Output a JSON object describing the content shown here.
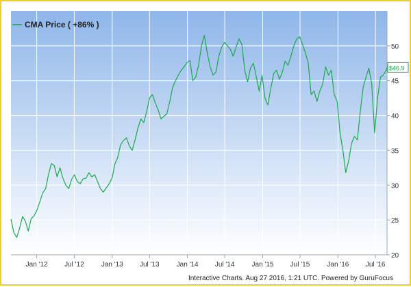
{
  "chart_data": {
    "type": "line",
    "title": "",
    "xlabel": "",
    "ylabel": "",
    "legend": {
      "position": "top-left",
      "label": "CMA Price ( +86% )"
    },
    "series": [
      {
        "name": "CMA Price ( +86% )",
        "color": "#1aa84a",
        "points": [
          [
            "2011-08-29",
            25.1
          ],
          [
            "2011-09-12",
            23.2
          ],
          [
            "2011-09-26",
            22.5
          ],
          [
            "2011-10-10",
            23.8
          ],
          [
            "2011-10-24",
            25.5
          ],
          [
            "2011-11-07",
            24.8
          ],
          [
            "2011-11-21",
            23.4
          ],
          [
            "2011-12-05",
            25.2
          ],
          [
            "2011-12-19",
            25.6
          ],
          [
            "2012-01-02",
            26.4
          ],
          [
            "2012-01-16",
            27.6
          ],
          [
            "2012-01-30",
            28.9
          ],
          [
            "2012-02-13",
            29.5
          ],
          [
            "2012-02-27",
            31.5
          ],
          [
            "2012-03-12",
            33.1
          ],
          [
            "2012-03-26",
            32.8
          ],
          [
            "2012-04-09",
            31.2
          ],
          [
            "2012-04-23",
            32.5
          ],
          [
            "2012-05-07",
            31.0
          ],
          [
            "2012-05-21",
            30.0
          ],
          [
            "2012-06-04",
            29.5
          ],
          [
            "2012-06-18",
            30.8
          ],
          [
            "2012-07-02",
            31.5
          ],
          [
            "2012-07-16",
            30.5
          ],
          [
            "2012-07-30",
            30.2
          ],
          [
            "2012-08-13",
            30.9
          ],
          [
            "2012-08-27",
            31.0
          ],
          [
            "2012-09-10",
            31.8
          ],
          [
            "2012-09-24",
            31.2
          ],
          [
            "2012-10-08",
            31.5
          ],
          [
            "2012-10-22",
            30.5
          ],
          [
            "2012-11-05",
            29.5
          ],
          [
            "2012-11-19",
            29.0
          ],
          [
            "2012-12-03",
            29.6
          ],
          [
            "2012-12-17",
            30.2
          ],
          [
            "2012-12-31",
            31.0
          ],
          [
            "2013-01-14",
            33.0
          ],
          [
            "2013-01-28",
            34.0
          ],
          [
            "2013-02-11",
            35.8
          ],
          [
            "2013-02-25",
            36.4
          ],
          [
            "2013-03-11",
            36.8
          ],
          [
            "2013-03-25",
            35.6
          ],
          [
            "2013-04-08",
            35.0
          ],
          [
            "2013-04-22",
            36.5
          ],
          [
            "2013-05-06",
            38.2
          ],
          [
            "2013-05-20",
            39.5
          ],
          [
            "2013-06-03",
            39.0
          ],
          [
            "2013-06-17",
            40.5
          ],
          [
            "2013-07-01",
            42.5
          ],
          [
            "2013-07-15",
            43.0
          ],
          [
            "2013-07-29",
            41.8
          ],
          [
            "2013-08-12",
            40.8
          ],
          [
            "2013-08-26",
            39.5
          ],
          [
            "2013-09-09",
            39.9
          ],
          [
            "2013-09-23",
            40.2
          ],
          [
            "2013-10-07",
            42.0
          ],
          [
            "2013-10-21",
            44.0
          ],
          [
            "2013-11-04",
            45.0
          ],
          [
            "2013-11-18",
            45.8
          ],
          [
            "2013-12-02",
            46.5
          ],
          [
            "2013-12-16",
            47.0
          ],
          [
            "2013-12-30",
            47.6
          ],
          [
            "2014-01-13",
            47.9
          ],
          [
            "2014-01-27",
            45.0
          ],
          [
            "2014-02-10",
            45.5
          ],
          [
            "2014-02-24",
            47.2
          ],
          [
            "2014-03-10",
            50.0
          ],
          [
            "2014-03-24",
            51.5
          ],
          [
            "2014-04-07",
            49.0
          ],
          [
            "2014-04-21",
            47.0
          ],
          [
            "2014-05-05",
            45.8
          ],
          [
            "2014-05-19",
            46.2
          ],
          [
            "2014-06-02",
            48.5
          ],
          [
            "2014-06-16",
            49.8
          ],
          [
            "2014-06-30",
            50.5
          ],
          [
            "2014-07-14",
            50.0
          ],
          [
            "2014-07-28",
            49.5
          ],
          [
            "2014-08-11",
            48.5
          ],
          [
            "2014-08-25",
            49.8
          ],
          [
            "2014-09-08",
            51.0
          ],
          [
            "2014-09-22",
            50.2
          ],
          [
            "2014-10-06",
            46.5
          ],
          [
            "2014-10-20",
            44.8
          ],
          [
            "2014-11-03",
            46.8
          ],
          [
            "2014-11-17",
            47.5
          ],
          [
            "2014-12-01",
            45.5
          ],
          [
            "2014-12-15",
            43.5
          ],
          [
            "2014-12-29",
            45.8
          ],
          [
            "2015-01-12",
            42.5
          ],
          [
            "2015-01-26",
            41.5
          ],
          [
            "2015-02-09",
            43.8
          ],
          [
            "2015-02-23",
            46.0
          ],
          [
            "2015-03-09",
            46.5
          ],
          [
            "2015-03-23",
            45.2
          ],
          [
            "2015-04-06",
            46.2
          ],
          [
            "2015-04-20",
            47.8
          ],
          [
            "2015-05-04",
            47.2
          ],
          [
            "2015-05-18",
            48.5
          ],
          [
            "2015-06-01",
            50.0
          ],
          [
            "2015-06-15",
            51.0
          ],
          [
            "2015-06-29",
            51.3
          ],
          [
            "2015-07-13",
            50.2
          ],
          [
            "2015-07-27",
            49.0
          ],
          [
            "2015-08-10",
            47.5
          ],
          [
            "2015-08-24",
            43.0
          ],
          [
            "2015-09-07",
            43.5
          ],
          [
            "2015-09-21",
            42.0
          ],
          [
            "2015-10-05",
            43.5
          ],
          [
            "2015-10-19",
            44.5
          ],
          [
            "2015-11-02",
            47.0
          ],
          [
            "2015-11-16",
            45.8
          ],
          [
            "2015-11-30",
            46.5
          ],
          [
            "2015-12-14",
            43.0
          ],
          [
            "2015-12-28",
            42.0
          ],
          [
            "2016-01-11",
            37.5
          ],
          [
            "2016-01-25",
            35.0
          ],
          [
            "2016-02-08",
            31.8
          ],
          [
            "2016-02-22",
            33.5
          ],
          [
            "2016-03-07",
            36.0
          ],
          [
            "2016-03-21",
            37.0
          ],
          [
            "2016-04-04",
            36.5
          ],
          [
            "2016-04-18",
            40.5
          ],
          [
            "2016-05-02",
            44.0
          ],
          [
            "2016-05-16",
            45.5
          ],
          [
            "2016-05-30",
            46.8
          ],
          [
            "2016-06-13",
            44.5
          ],
          [
            "2016-06-27",
            37.5
          ],
          [
            "2016-07-11",
            42.5
          ],
          [
            "2016-07-25",
            45.5
          ],
          [
            "2016-08-08",
            45.8
          ],
          [
            "2016-08-22",
            46.5
          ],
          [
            "2016-08-26",
            46.9
          ]
        ]
      }
    ],
    "x_axis": {
      "ticks": [
        {
          "date": "2012-01-01",
          "label": "Jan '12"
        },
        {
          "date": "2012-07-01",
          "label": "Jul '12"
        },
        {
          "date": "2013-01-01",
          "label": "Jan '13"
        },
        {
          "date": "2013-07-01",
          "label": "Jul '13"
        },
        {
          "date": "2014-01-01",
          "label": "Jan '14"
        },
        {
          "date": "2014-07-01",
          "label": "Jul '14"
        },
        {
          "date": "2015-01-01",
          "label": "Jan '15"
        },
        {
          "date": "2015-07-01",
          "label": "Jul '15"
        },
        {
          "date": "2016-01-01",
          "label": "Jan '16"
        },
        {
          "date": "2016-07-01",
          "label": "Jul '16"
        }
      ],
      "range": [
        "2011-08-29",
        "2016-08-26"
      ]
    },
    "y_axis": {
      "position": "right",
      "ticks": [
        20,
        25,
        30,
        35,
        40,
        45,
        50
      ],
      "range": [
        20,
        55
      ]
    },
    "last_value_label": "$46.9",
    "grid": true,
    "background_gradient": [
      "#8fb6ea",
      "#ffffff"
    ]
  },
  "footer": {
    "credit": "Interactive Charts. Aug 27 2016, 1:21 UTC. Powered by GuruFocus"
  }
}
